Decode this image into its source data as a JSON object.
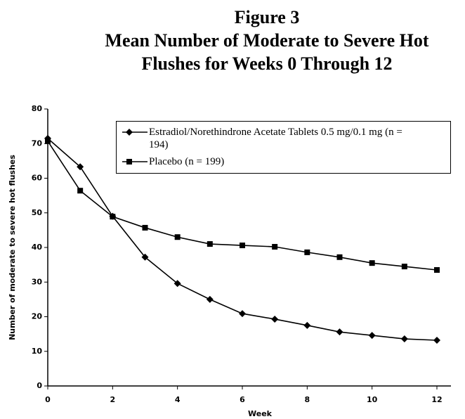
{
  "chart_data": {
    "type": "line",
    "title": "Figure 3",
    "subtitle": "Mean Number of Moderate to Severe Hot Flushes for Weeks 0 Through 12",
    "x_label": "Week",
    "y_label": "Number of moderate to severe hot flushes",
    "x": [
      0,
      1,
      2,
      3,
      4,
      5,
      6,
      7,
      8,
      9,
      10,
      11,
      12
    ],
    "xlim": [
      0,
      12
    ],
    "xticks": [
      0,
      2,
      4,
      6,
      8,
      10,
      12
    ],
    "ylim": [
      0,
      80
    ],
    "yticks": [
      0,
      10,
      20,
      30,
      40,
      50,
      60,
      70,
      80
    ],
    "grid": false,
    "legend": "upper right",
    "series": [
      {
        "name": "Estradiol/Norethindrone Acetate Tablets 0.5 mg/0.1 mg (n = 194)",
        "color": "#000000",
        "marker": "diamond",
        "values": [
          71.5,
          63.3,
          49,
          37.2,
          29.6,
          25,
          20.9,
          19.3,
          17.5,
          15.6,
          14.6,
          13.6,
          13.2
        ]
      },
      {
        "name": "Placebo (n = 199)",
        "color": "#000000",
        "marker": "square",
        "values": [
          70.7,
          56.4,
          48.9,
          45.7,
          43,
          41,
          40.6,
          40.2,
          38.6,
          37.2,
          35.5,
          34.5,
          33.5
        ]
      }
    ]
  }
}
